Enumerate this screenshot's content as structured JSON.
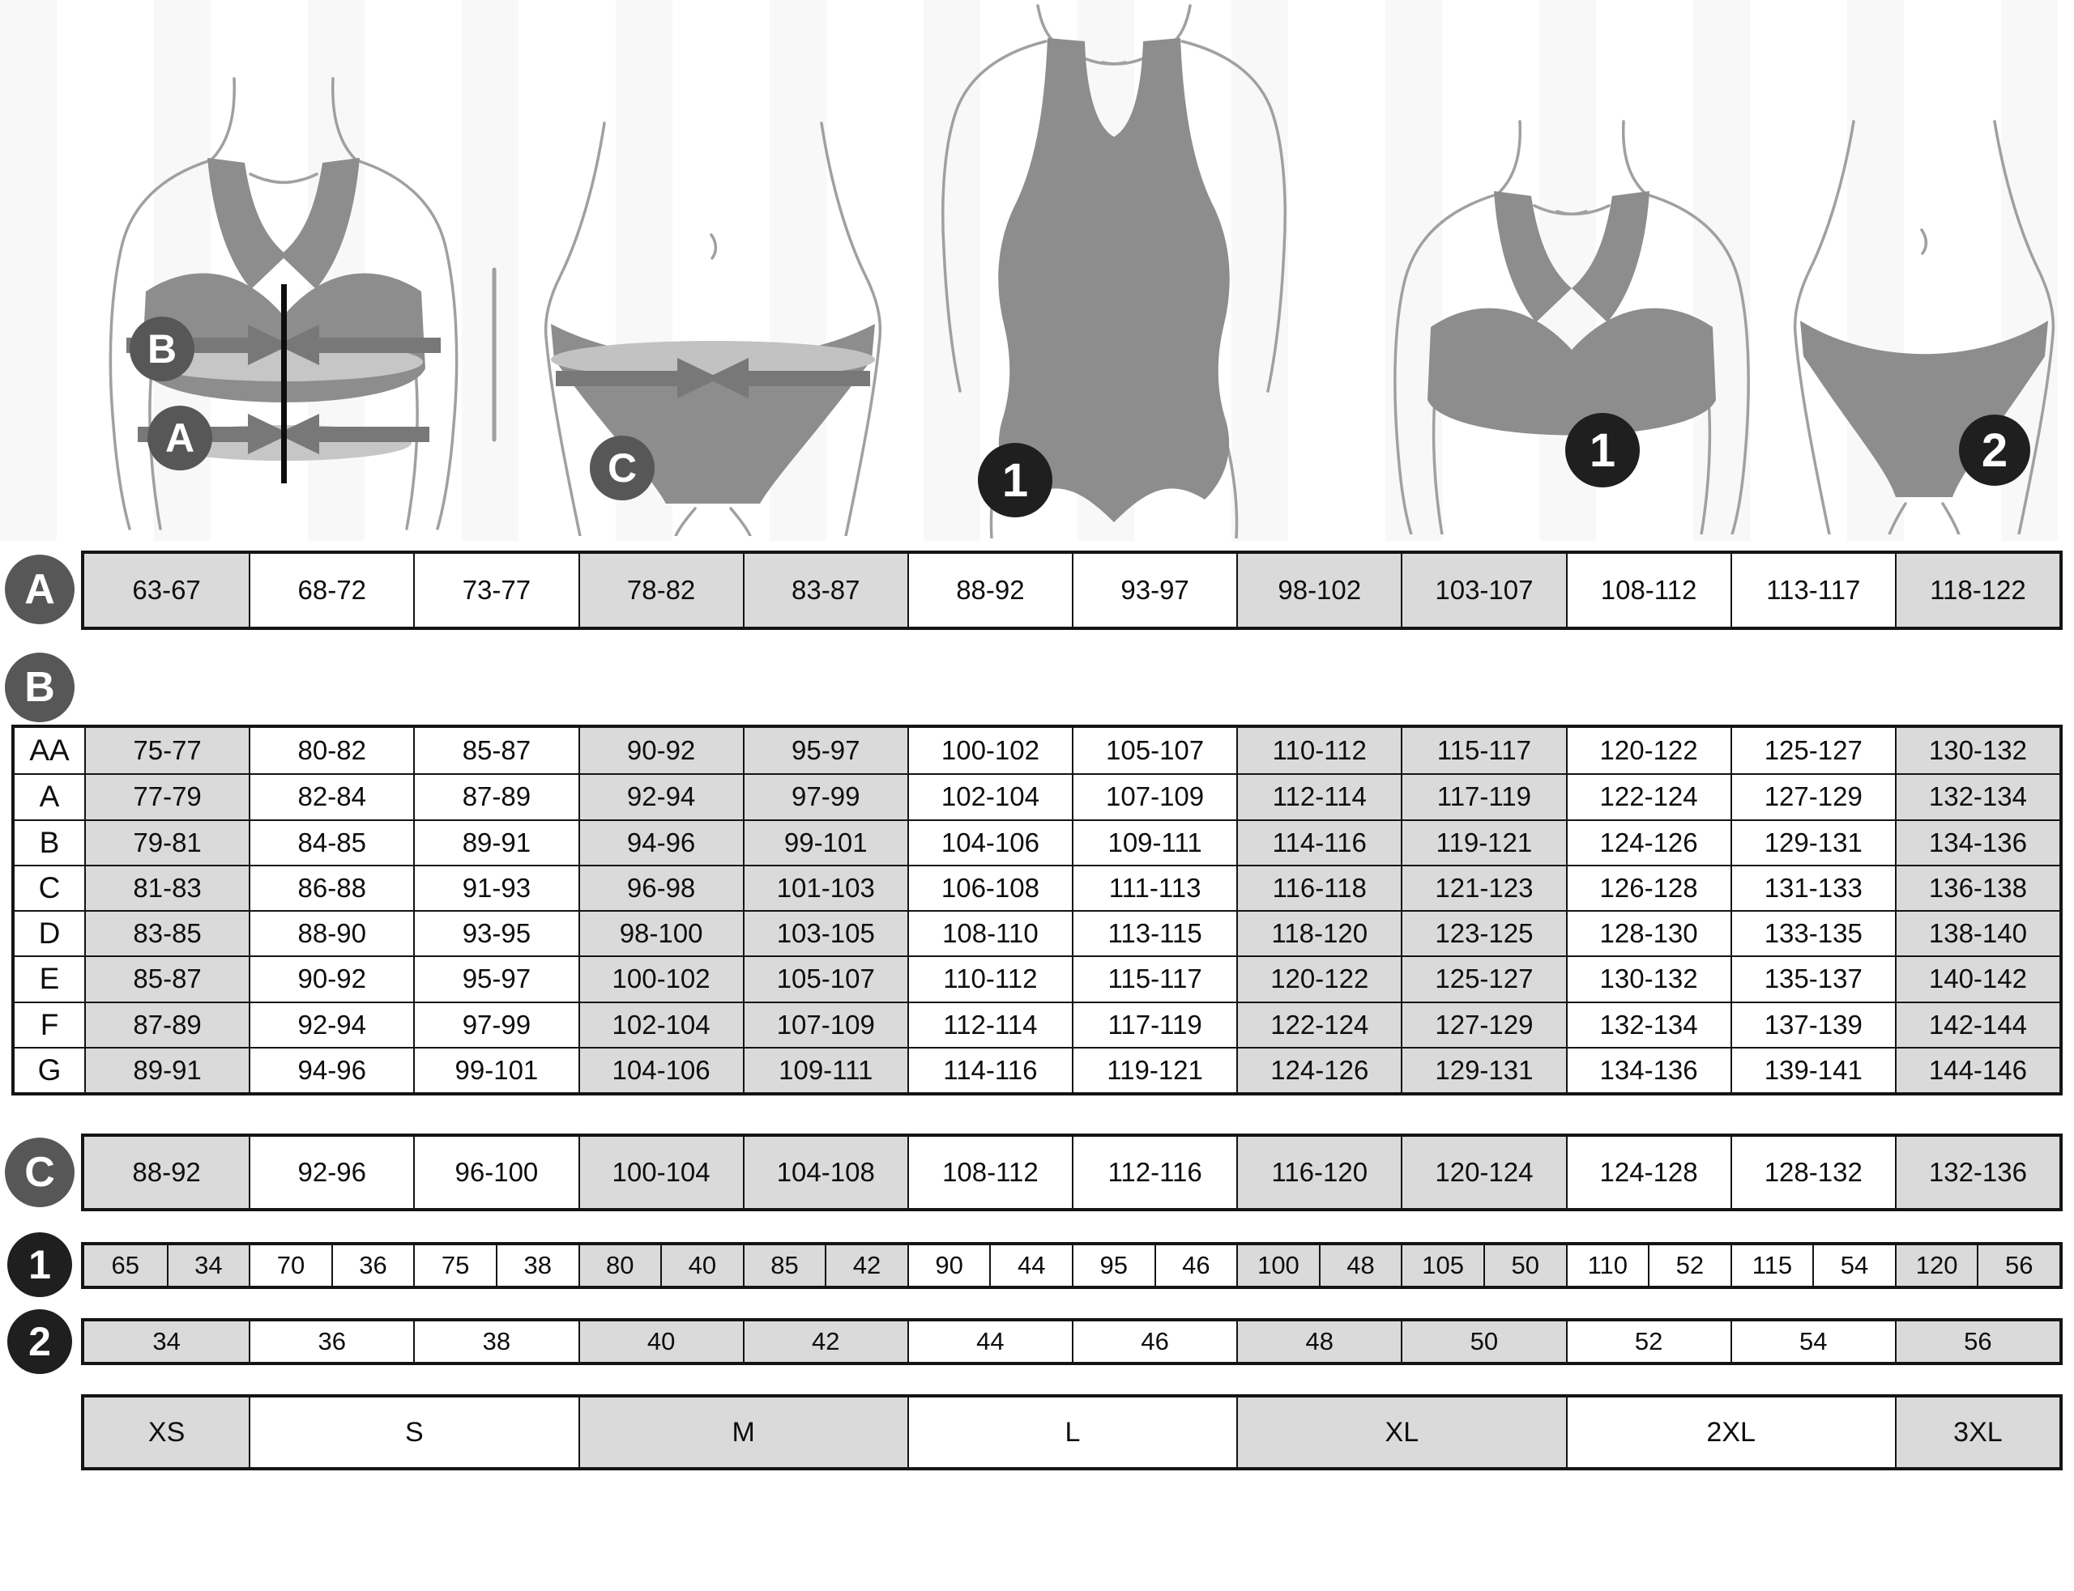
{
  "palette": {
    "cell_shaded": "#dadada",
    "cell_white": "#ffffff",
    "grid_border": "#141414",
    "letter_badge_bg": "#575757",
    "number_badge_bg": "#1f1f1f",
    "silhouette_garment": "#8d8d8d",
    "silhouette_band_light": "#c6c6c6",
    "silhouette_band_dark": "#787878",
    "silhouette_outline": "#a0a0a0"
  },
  "layout": {
    "shaded_columns": [
      0,
      3,
      4,
      7,
      8,
      11
    ],
    "shaded_size_cells": [
      0,
      2,
      4,
      6
    ]
  },
  "figures": [
    {
      "name": "bra-measurement-figure",
      "badges": [
        "B",
        "A"
      ]
    },
    {
      "name": "panty-measurement-figure",
      "badges": [
        "C"
      ]
    },
    {
      "name": "swimsuit-figure",
      "badges": [
        "1"
      ]
    },
    {
      "name": "bra-figure",
      "badges": [
        "1"
      ]
    },
    {
      "name": "panty-figure",
      "badges": [
        "2"
      ]
    }
  ],
  "row_a": {
    "badge": "A",
    "cells": [
      "63-67",
      "68-72",
      "73-77",
      "78-82",
      "83-87",
      "88-92",
      "93-97",
      "98-102",
      "103-107",
      "108-112",
      "113-117",
      "118-122"
    ]
  },
  "section_b": {
    "badge": "B",
    "rows": [
      {
        "label": "AA",
        "cells": [
          "75-77",
          "80-82",
          "85-87",
          "90-92",
          "95-97",
          "100-102",
          "105-107",
          "110-112",
          "115-117",
          "120-122",
          "125-127",
          "130-132"
        ]
      },
      {
        "label": "A",
        "cells": [
          "77-79",
          "82-84",
          "87-89",
          "92-94",
          "97-99",
          "102-104",
          "107-109",
          "112-114",
          "117-119",
          "122-124",
          "127-129",
          "132-134"
        ]
      },
      {
        "label": "B",
        "cells": [
          "79-81",
          "84-85",
          "89-91",
          "94-96",
          "99-101",
          "104-106",
          "109-111",
          "114-116",
          "119-121",
          "124-126",
          "129-131",
          "134-136"
        ]
      },
      {
        "label": "C",
        "cells": [
          "81-83",
          "86-88",
          "91-93",
          "96-98",
          "101-103",
          "106-108",
          "111-113",
          "116-118",
          "121-123",
          "126-128",
          "131-133",
          "136-138"
        ]
      },
      {
        "label": "D",
        "cells": [
          "83-85",
          "88-90",
          "93-95",
          "98-100",
          "103-105",
          "108-110",
          "113-115",
          "118-120",
          "123-125",
          "128-130",
          "133-135",
          "138-140"
        ]
      },
      {
        "label": "E",
        "cells": [
          "85-87",
          "90-92",
          "95-97",
          "100-102",
          "105-107",
          "110-112",
          "115-117",
          "120-122",
          "125-127",
          "130-132",
          "135-137",
          "140-142"
        ]
      },
      {
        "label": "F",
        "cells": [
          "87-89",
          "92-94",
          "97-99",
          "102-104",
          "107-109",
          "112-114",
          "117-119",
          "122-124",
          "127-129",
          "132-134",
          "137-139",
          "142-144"
        ]
      },
      {
        "label": "G",
        "cells": [
          "89-91",
          "94-96",
          "99-101",
          "104-106",
          "109-111",
          "114-116",
          "119-121",
          "124-126",
          "129-131",
          "134-136",
          "139-141",
          "144-146"
        ]
      }
    ]
  },
  "row_c": {
    "badge": "C",
    "cells": [
      "88-92",
      "92-96",
      "96-100",
      "100-104",
      "104-108",
      "108-112",
      "112-116",
      "116-120",
      "120-124",
      "124-128",
      "128-132",
      "132-136"
    ]
  },
  "row_1": {
    "badge": "1",
    "pairs": [
      [
        "65",
        "34"
      ],
      [
        "70",
        "36"
      ],
      [
        "75",
        "38"
      ],
      [
        "80",
        "40"
      ],
      [
        "85",
        "42"
      ],
      [
        "90",
        "44"
      ],
      [
        "95",
        "46"
      ],
      [
        "100",
        "48"
      ],
      [
        "105",
        "50"
      ],
      [
        "110",
        "52"
      ],
      [
        "115",
        "54"
      ],
      [
        "120",
        "56"
      ]
    ]
  },
  "row_2": {
    "badge": "2",
    "cells": [
      "34",
      "36",
      "38",
      "40",
      "42",
      "44",
      "46",
      "48",
      "50",
      "52",
      "54",
      "56"
    ]
  },
  "sizes": {
    "cells": [
      {
        "label": "XS",
        "span": 1
      },
      {
        "label": "S",
        "span": 2
      },
      {
        "label": "M",
        "span": 2
      },
      {
        "label": "L",
        "span": 2
      },
      {
        "label": "XL",
        "span": 2
      },
      {
        "label": "2XL",
        "span": 2
      },
      {
        "label": "3XL",
        "span": 1
      }
    ]
  }
}
